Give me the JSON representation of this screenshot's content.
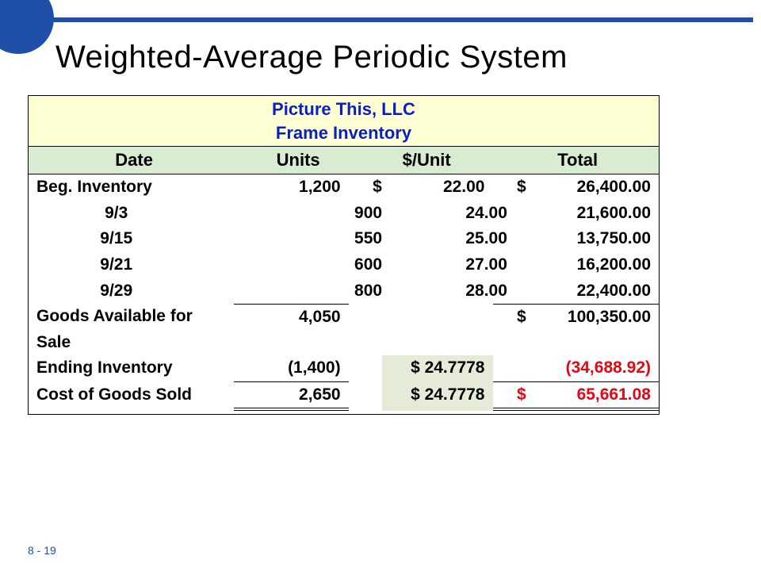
{
  "slide": {
    "title": "Weighted-Average Periodic System",
    "page_number": "8 - 19"
  },
  "colors": {
    "accent_blue": "#1f4fa8",
    "header_text_blue": "#0a1fbf",
    "header_band_bg": "#feffd2",
    "column_header_bg": "#d7ecd0",
    "shade_cell_bg": "#e4ecd7",
    "negative_red": "#e30613",
    "border": "#000000",
    "background": "#ffffff"
  },
  "table": {
    "company": "Picture This, LLC",
    "subtitle": "Frame Inventory",
    "columns": {
      "date": "Date",
      "units": "Units",
      "unit_price": "$/Unit",
      "total": "Total"
    },
    "rows": [
      {
        "date": "Beg. Inventory",
        "date_align": "left",
        "units": "1,200",
        "cur1": "$",
        "unit_price": "22.00",
        "cur2": "$",
        "total": "26,400.00"
      },
      {
        "date": "9/3",
        "date_align": "center",
        "units": "900",
        "cur1": "",
        "unit_price": "24.00",
        "cur2": "",
        "total": "21,600.00"
      },
      {
        "date": "9/15",
        "date_align": "center",
        "units": "550",
        "cur1": "",
        "unit_price": "25.00",
        "cur2": "",
        "total": "13,750.00"
      },
      {
        "date": "9/21",
        "date_align": "center",
        "units": "600",
        "cur1": "",
        "unit_price": "27.00",
        "cur2": "",
        "total": "16,200.00"
      },
      {
        "date": "9/29",
        "date_align": "center",
        "units": "800",
        "cur1": "",
        "unit_price": "28.00",
        "cur2": "",
        "total": "22,400.00"
      }
    ],
    "goods_available": {
      "label": "Goods Available for Sale",
      "units": "4,050",
      "cur2": "$",
      "total": "100,350.00"
    },
    "ending_inventory": {
      "label": "Ending Inventory",
      "units": "(1,400)",
      "unit_price": "$ 24.7778",
      "total": "(34,688.92)"
    },
    "cogs": {
      "label": "Cost of Goods Sold",
      "units": "2,650",
      "unit_price": "$ 24.7778",
      "cur2": "$",
      "total": "65,661.08"
    }
  }
}
